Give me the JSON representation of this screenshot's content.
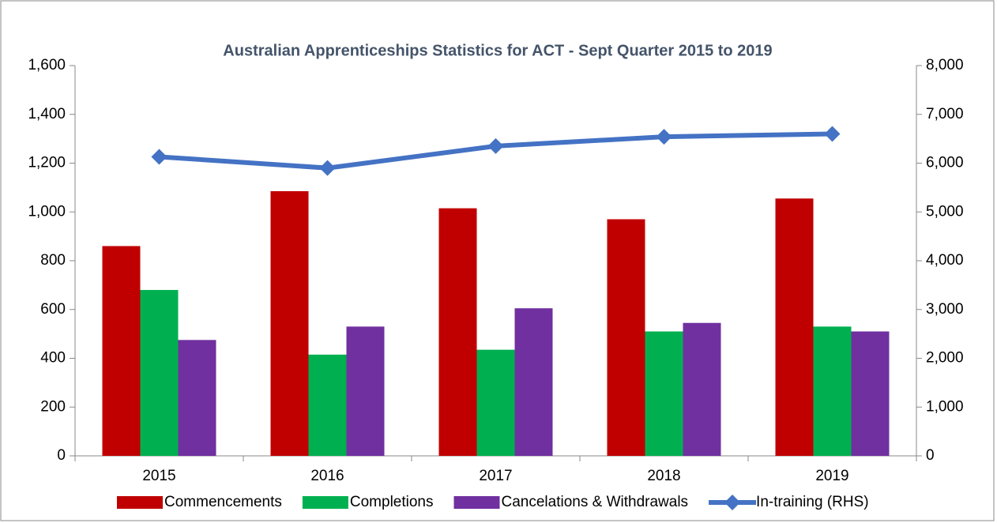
{
  "chart_data": {
    "type": "bar",
    "title": "Australian Apprenticeships Statistics for ACT - Sept Quarter  2015 to 2019",
    "categories": [
      "2015",
      "2016",
      "2017",
      "2018",
      "2019"
    ],
    "series": [
      {
        "name": "Commencements",
        "type": "bar",
        "color": "#c00000",
        "values": [
          860,
          1085,
          1015,
          970,
          1055
        ]
      },
      {
        "name": "Completions",
        "type": "bar",
        "color": "#00b050",
        "values": [
          680,
          415,
          435,
          510,
          530
        ]
      },
      {
        "name": "Cancelations & Withdrawals",
        "type": "bar",
        "color": "#7030a0",
        "values": [
          475,
          530,
          605,
          545,
          510
        ]
      },
      {
        "name": "In-training (RHS)",
        "type": "line",
        "axis": "y2",
        "color": "#4472c4",
        "values": [
          6130,
          5900,
          6350,
          6540,
          6600
        ]
      }
    ],
    "ylim": [
      0,
      1600
    ],
    "yticks": [
      0,
      200,
      400,
      600,
      800,
      {
        "value": 1000,
        "label": "1,000"
      },
      {
        "value": 1200,
        "label": "1,200"
      },
      {
        "value": 1400,
        "label": "1,400"
      },
      {
        "value": 1600,
        "label": "1,600"
      }
    ],
    "y2lim": [
      0,
      8000
    ],
    "y2ticks": [
      0,
      {
        "value": 1000,
        "label": "1,000"
      },
      {
        "value": 2000,
        "label": "2,000"
      },
      {
        "value": 3000,
        "label": "3,000"
      },
      {
        "value": 4000,
        "label": "4,000"
      },
      {
        "value": 5000,
        "label": "5,000"
      },
      {
        "value": 6000,
        "label": "6,000"
      },
      {
        "value": 7000,
        "label": "7,000"
      },
      {
        "value": 8000,
        "label": "8,000"
      }
    ],
    "grid": false,
    "legend": "bottom"
  }
}
